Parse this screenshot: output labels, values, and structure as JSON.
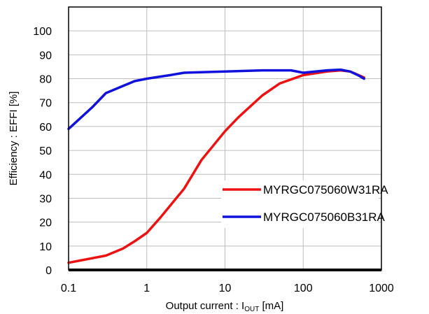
{
  "chart_data": {
    "type": "line",
    "title": "",
    "xlabel": {
      "prefix": "Output current : I",
      "subscript": "OUT",
      "suffix": " [mA]"
    },
    "ylabel": "Efficiency : EFFI [%]",
    "xscale": "log",
    "xlim": [
      0.1,
      1000
    ],
    "ylim": [
      0,
      110
    ],
    "x_ticks": [
      0.1,
      1,
      10,
      100,
      1000
    ],
    "x_tick_labels": [
      "0.1",
      "1",
      "10",
      "100",
      "1000"
    ],
    "y_ticks": [
      0,
      10,
      20,
      30,
      40,
      50,
      60,
      70,
      80,
      90,
      100
    ],
    "y_tick_labels": [
      "0",
      "10",
      "20",
      "30",
      "40",
      "50",
      "60",
      "70",
      "80",
      "90",
      "100"
    ],
    "grid": true,
    "legend_position": "right-center",
    "series": [
      {
        "name": "MYRGC075060W31RA",
        "color": "#ee1111",
        "x": [
          0.1,
          0.3,
          0.5,
          0.7,
          1,
          1.5,
          3,
          5,
          10,
          15,
          30,
          50,
          100,
          200,
          300,
          400,
          600
        ],
        "y": [
          3,
          6,
          9,
          12,
          15.5,
          22,
          34,
          46,
          58,
          64,
          73,
          78,
          81.5,
          83,
          83.5,
          83,
          80.5
        ]
      },
      {
        "name": "MYRGC075060B31RA",
        "color": "#1111dd",
        "x": [
          0.1,
          0.2,
          0.3,
          0.5,
          0.7,
          1,
          2,
          3,
          10,
          30,
          70,
          100,
          200,
          300,
          400,
          500,
          600
        ],
        "y": [
          59,
          68,
          74,
          77,
          79,
          80,
          81.5,
          82.5,
          83,
          83.5,
          83.5,
          82.5,
          83.5,
          83.8,
          83,
          81.5,
          80
        ]
      }
    ]
  }
}
